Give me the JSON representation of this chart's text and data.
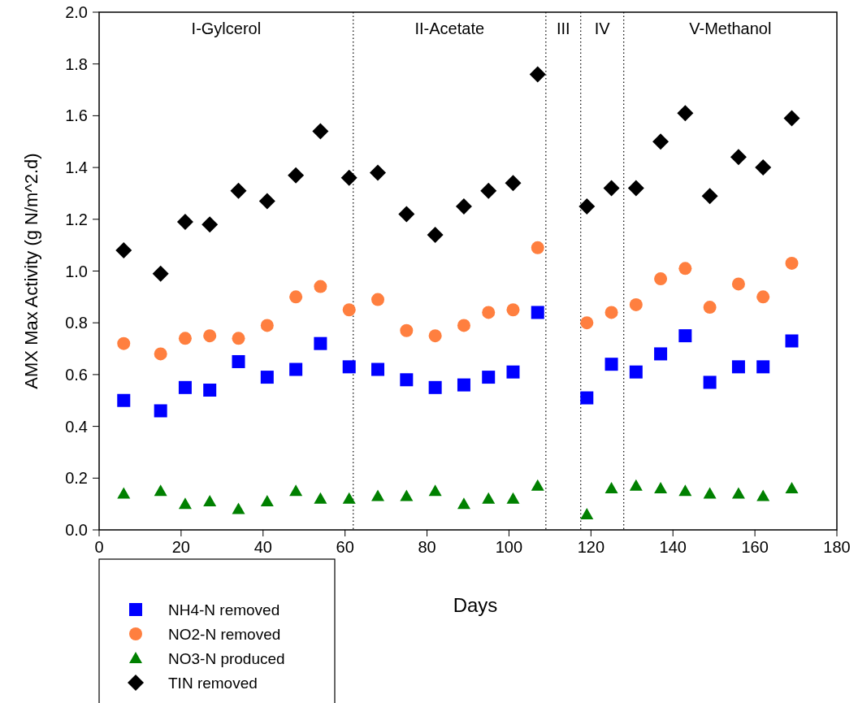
{
  "chart_data": {
    "type": "scatter",
    "xlabel": "Days",
    "ylabel": "AMX Max Activity (g N/m^2.d)",
    "x": [
      6,
      15,
      21,
      27,
      34,
      41,
      48,
      54,
      61,
      68,
      75,
      82,
      89,
      95,
      101,
      107,
      119,
      125,
      131,
      137,
      143,
      149,
      156,
      162,
      169
    ],
    "series": [
      {
        "name": "NH4-N removed",
        "color": "#0000ff",
        "marker": "square",
        "values": [
          0.5,
          0.46,
          0.55,
          0.54,
          0.65,
          0.59,
          0.62,
          0.72,
          0.63,
          0.62,
          0.58,
          0.55,
          0.56,
          0.59,
          0.61,
          0.84,
          0.51,
          0.64,
          0.61,
          0.68,
          0.75,
          0.57,
          0.63,
          0.63,
          0.73
        ]
      },
      {
        "name": "NO2-N removed",
        "color": "#ff7f3f",
        "marker": "circle",
        "values": [
          0.72,
          0.68,
          0.74,
          0.75,
          0.74,
          0.79,
          0.9,
          0.94,
          0.85,
          0.89,
          0.77,
          0.75,
          0.79,
          0.84,
          0.85,
          1.09,
          0.8,
          0.84,
          0.87,
          0.97,
          1.01,
          0.86,
          0.95,
          0.9,
          1.03
        ]
      },
      {
        "name": "NO3-N produced",
        "color": "#008000",
        "marker": "triangle",
        "values": [
          0.14,
          0.15,
          0.1,
          0.11,
          0.08,
          0.11,
          0.15,
          0.12,
          0.12,
          0.13,
          0.13,
          0.15,
          0.1,
          0.12,
          0.12,
          0.17,
          0.06,
          0.16,
          0.17,
          0.16,
          0.15,
          0.14,
          0.14,
          0.13,
          0.16
        ]
      },
      {
        "name": "TIN removed",
        "color": "#000000",
        "marker": "diamond",
        "values": [
          1.08,
          0.99,
          1.19,
          1.18,
          1.31,
          1.27,
          1.37,
          1.54,
          1.36,
          1.38,
          1.22,
          1.14,
          1.25,
          1.31,
          1.34,
          1.76,
          1.25,
          1.32,
          1.32,
          1.5,
          1.61,
          1.29,
          1.44,
          1.4,
          1.59
        ]
      }
    ],
    "xlim": [
      0,
      180
    ],
    "xticks": [
      0,
      20,
      40,
      60,
      80,
      100,
      120,
      140,
      160,
      180
    ],
    "ylim": [
      0,
      2
    ],
    "yticks": [
      {
        "value": 0,
        "label": "0.0"
      },
      {
        "value": 0.2,
        "label": "0.2"
      },
      {
        "value": 0.4,
        "label": "0.4"
      },
      {
        "value": 0.6,
        "label": "0.6"
      },
      {
        "value": 0.8,
        "label": "0.8"
      },
      {
        "value": 1.0,
        "label": "1.0"
      },
      {
        "value": 1.2,
        "label": "1.2"
      },
      {
        "value": 1.4,
        "label": "1.4"
      },
      {
        "value": 1.6,
        "label": "1.6"
      },
      {
        "value": 1.8,
        "label": "1.8"
      },
      {
        "value": 2.0,
        "label": "2.0"
      }
    ],
    "ref_lines": [
      {
        "axis": "x",
        "value": 62,
        "color": "#000000",
        "line_style": "dotted"
      },
      {
        "axis": "x",
        "value": 109,
        "color": "#000000",
        "line_style": "dotted"
      },
      {
        "axis": "x",
        "value": 117.5,
        "color": "#000000",
        "line_style": "dotted"
      },
      {
        "axis": "x",
        "value": 128,
        "color": "#000000",
        "line_style": "dotted"
      }
    ],
    "annotations": [
      "I-Gylcerol",
      "II-Acetate",
      "III",
      "IV",
      "V-Methanol"
    ],
    "grid": false,
    "legend": "bottom left"
  }
}
